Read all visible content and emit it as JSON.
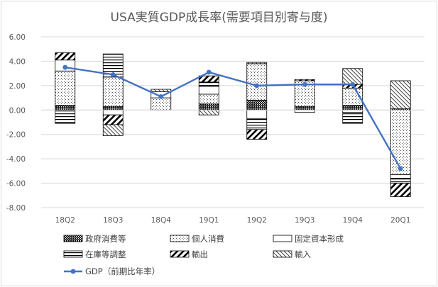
{
  "chart_data": {
    "type": "bar",
    "stacked": true,
    "title": "USA実質GDP成長率(需要項目別寄与度)",
    "xlabel": "",
    "ylabel": "",
    "ylim": [
      -8,
      6
    ],
    "yticks": [
      -8,
      -6,
      -4,
      -2,
      0,
      2,
      4,
      6
    ],
    "ytick_labels": [
      "-8.00",
      "-6.00",
      "-4.00",
      "-2.00",
      "0.00",
      "2.00",
      "4.00",
      "6.00"
    ],
    "grid": true,
    "legend_position": "bottom",
    "categories": [
      "18Q2",
      "18Q3",
      "18Q4",
      "19Q1",
      "19Q2",
      "19Q3",
      "19Q4",
      "20Q1"
    ],
    "series": [
      {
        "name": "政府消費等",
        "pattern": "dense-dots",
        "values": [
          0.4,
          0.3,
          0.0,
          0.5,
          0.8,
          0.3,
          0.4,
          0.1
        ]
      },
      {
        "name": "個人消費",
        "pattern": "sparse-dots",
        "values": [
          2.8,
          2.4,
          1.0,
          0.8,
          3.0,
          2.1,
          1.4,
          -5.3
        ]
      },
      {
        "name": "固定資本形成",
        "pattern": "blank",
        "values": [
          0.9,
          -0.4,
          0.5,
          0.6,
          -0.7,
          -0.2,
          -0.2,
          -0.3
        ]
      },
      {
        "name": "在庫等調整",
        "pattern": "h-lines",
        "values": [
          -1.1,
          1.9,
          0.0,
          0.4,
          -0.9,
          0.0,
          -0.9,
          -0.4
        ]
      },
      {
        "name": "輸出",
        "pattern": "wide-diag",
        "values": [
          0.6,
          -0.8,
          0.0,
          0.5,
          -0.8,
          0.1,
          0.3,
          -1.1
        ]
      },
      {
        "name": "輸入",
        "pattern": "narrow-diag",
        "values": [
          0.0,
          -0.9,
          0.2,
          -0.4,
          0.1,
          0.0,
          1.3,
          2.3
        ]
      }
    ],
    "line_series": {
      "name": "GDP（前期比年率）",
      "color": "#4472c4",
      "values": [
        3.5,
        2.9,
        1.1,
        3.1,
        2.0,
        2.1,
        2.1,
        -4.8
      ]
    }
  }
}
